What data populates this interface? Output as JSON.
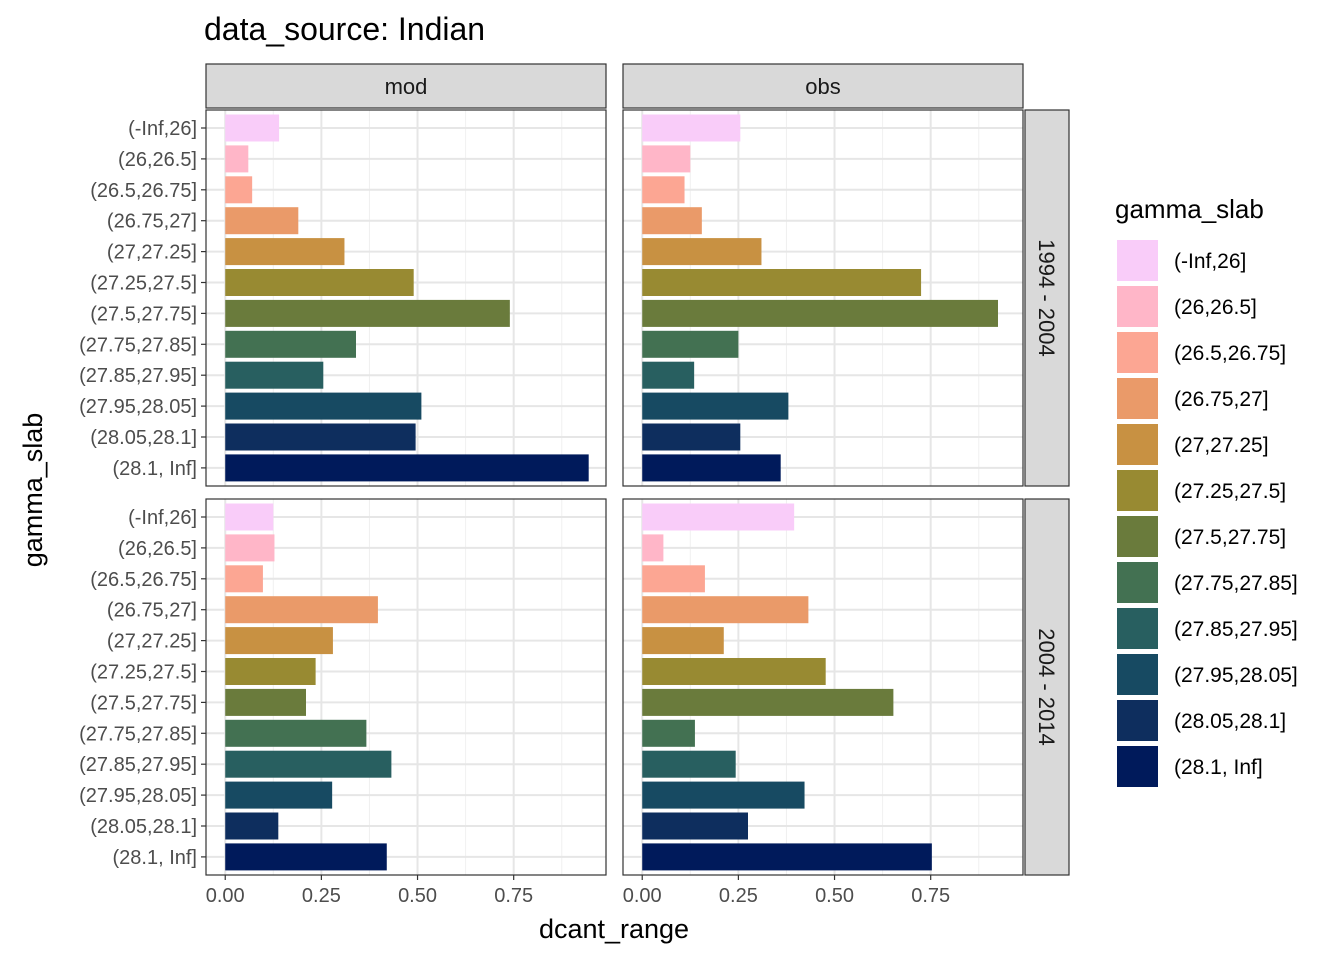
{
  "chart_data": {
    "type": "bar",
    "orientation": "horizontal",
    "title": "data_source: Indian",
    "xlabel": "dcant_range",
    "ylabel": "gamma_slab",
    "xlim": [
      -0.05,
      0.99
    ],
    "x_ticks": [
      0,
      0.25,
      0.5,
      0.75
    ],
    "x_tick_labels": [
      "0.00",
      "0.25",
      "0.50",
      "0.75"
    ],
    "grid": true,
    "facet_columns": [
      "mod",
      "obs"
    ],
    "facet_rows": [
      "1994 - 2004",
      "2004 - 2014"
    ],
    "categories": [
      "(-Inf,26]",
      "(26,26.5]",
      "(26.5,26.75]",
      "(26.75,27]",
      "(27,27.25]",
      "(27.25,27.5]",
      "(27.5,27.75]",
      "(27.75,27.85]",
      "(27.85,27.95]",
      "(27.95,28.05]",
      "(28.05,28.1]",
      "(28.1, Inf]"
    ],
    "colors": [
      "#F9CCF9",
      "#FFB6C8",
      "#FCA693",
      "#EA9A69",
      "#C89142",
      "#988A32",
      "#6A7B3C",
      "#437152",
      "#285F60",
      "#174A62",
      "#0E2E5E",
      "#001A5B"
    ],
    "legend": {
      "title": "gamma_slab",
      "position": "right"
    },
    "panels": [
      {
        "column": "mod",
        "row": "1994 - 2004",
        "values": [
          0.14,
          0.06,
          0.07,
          0.19,
          0.31,
          0.49,
          0.74,
          0.34,
          0.255,
          0.51,
          0.495,
          0.945
        ]
      },
      {
        "column": "obs",
        "row": "1994 - 2004",
        "values": [
          0.255,
          0.125,
          0.11,
          0.155,
          0.31,
          0.725,
          0.925,
          0.25,
          0.135,
          0.38,
          0.255,
          0.36
        ]
      },
      {
        "column": "mod",
        "row": "2004 - 2014",
        "values": [
          0.125,
          0.128,
          0.098,
          0.397,
          0.28,
          0.235,
          0.21,
          0.367,
          0.432,
          0.278,
          0.138,
          0.42
        ]
      },
      {
        "column": "obs",
        "row": "2004 - 2014",
        "values": [
          0.395,
          0.055,
          0.163,
          0.432,
          0.212,
          0.477,
          0.653,
          0.137,
          0.243,
          0.422,
          0.275,
          0.753
        ]
      }
    ]
  }
}
